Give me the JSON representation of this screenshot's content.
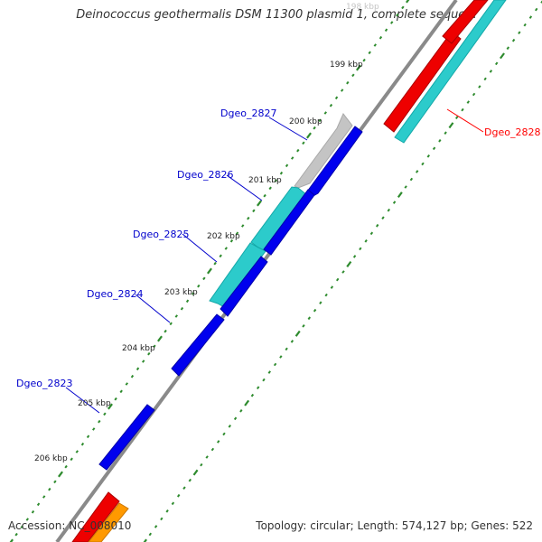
{
  "title": "Deinococcus geothermalis DSM 11300 plasmid 1, complete seque...",
  "footer": {
    "accession": "Accession: NC_008010",
    "summary": "Topology: circular; Length: 574,127 bp; Genes: 522"
  },
  "colors": {
    "backbone": "#8a8a8a",
    "tick": "#2e8b2e",
    "label_blue": "#0000cc",
    "label_red": "#ff0000",
    "gene_blue": "#0000ee",
    "gene_cyan": "#22cccc",
    "gene_gray": "#c0c0c0",
    "gene_red": "#ee0000",
    "gene_orange": "#ff9900"
  },
  "kbp_labels": [
    "198 kbp",
    "199 kbp",
    "200 kbp",
    "201 kbp",
    "202 kbp",
    "203 kbp",
    "204 kbp",
    "205 kbp",
    "206 kbp"
  ],
  "gene_labels": {
    "dgeo_2828": "Dgeo_2828",
    "dgeo_2827": "Dgeo_2827",
    "dgeo_2826": "Dgeo_2826",
    "dgeo_2825": "Dgeo_2825",
    "dgeo_2824": "Dgeo_2824",
    "dgeo_2823": "Dgeo_2823"
  }
}
